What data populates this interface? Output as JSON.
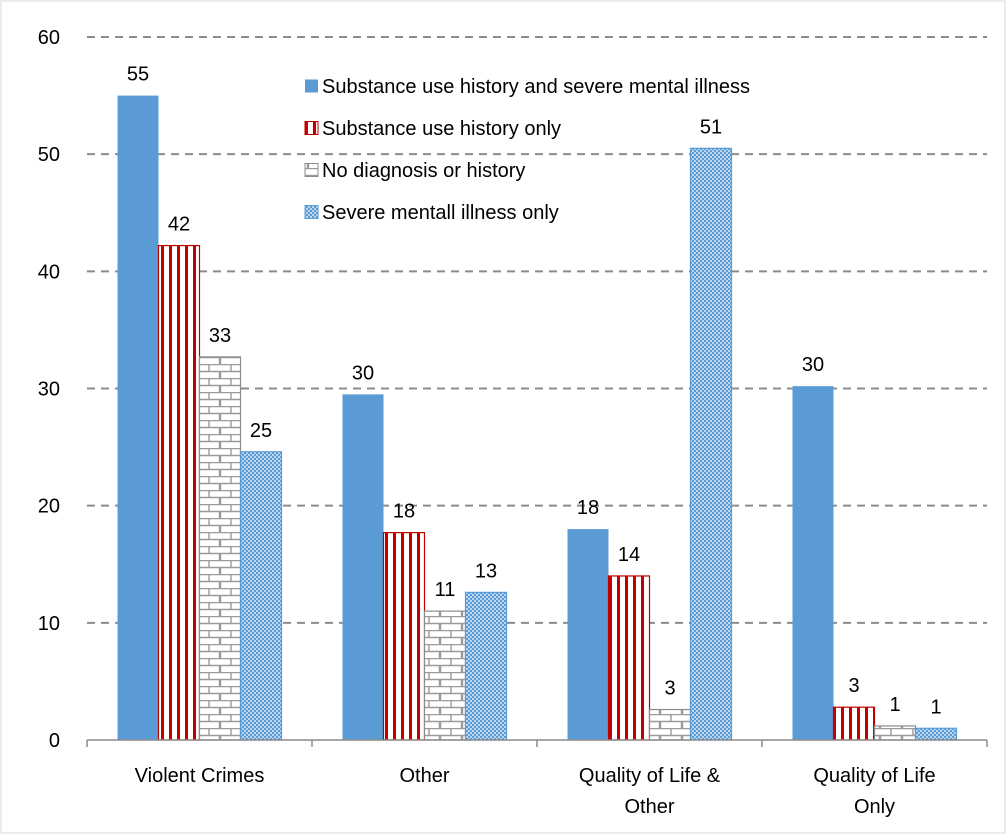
{
  "chart_data": {
    "type": "bar",
    "title": "",
    "xlabel": "",
    "ylabel": "",
    "ylim": [
      0,
      60
    ],
    "yticks": [
      0,
      10,
      20,
      30,
      40,
      50,
      60
    ],
    "grid": "horizontal-dashed",
    "legend_position": "top-center",
    "categories": [
      "Violent Crimes",
      "Other",
      "Quality of Life & Other",
      "Quality of Life Only"
    ],
    "series": [
      {
        "name": "Substance use history and severe mental illness",
        "values": [
          55,
          29.5,
          18,
          30.2
        ],
        "labels": [
          "55",
          "30",
          "18",
          "30"
        ],
        "color": "#5b9bd5",
        "pattern": "solid"
      },
      {
        "name": "Substance use history only",
        "values": [
          42.2,
          17.7,
          14,
          2.8
        ],
        "labels": [
          "42",
          "18",
          "14",
          "3"
        ],
        "color": "#c00000",
        "pattern": "vertical-stripes"
      },
      {
        "name": "No diagnosis or history",
        "values": [
          32.7,
          11,
          2.6,
          1.2
        ],
        "labels": [
          "33",
          "11",
          "3",
          "1"
        ],
        "color": "#808080",
        "pattern": "brick"
      },
      {
        "name": "Severe mentall illness only",
        "values": [
          24.6,
          12.6,
          50.5,
          1
        ],
        "labels": [
          "25",
          "13",
          "51",
          "1"
        ],
        "color": "#5b9bd5",
        "pattern": "checker"
      }
    ]
  }
}
